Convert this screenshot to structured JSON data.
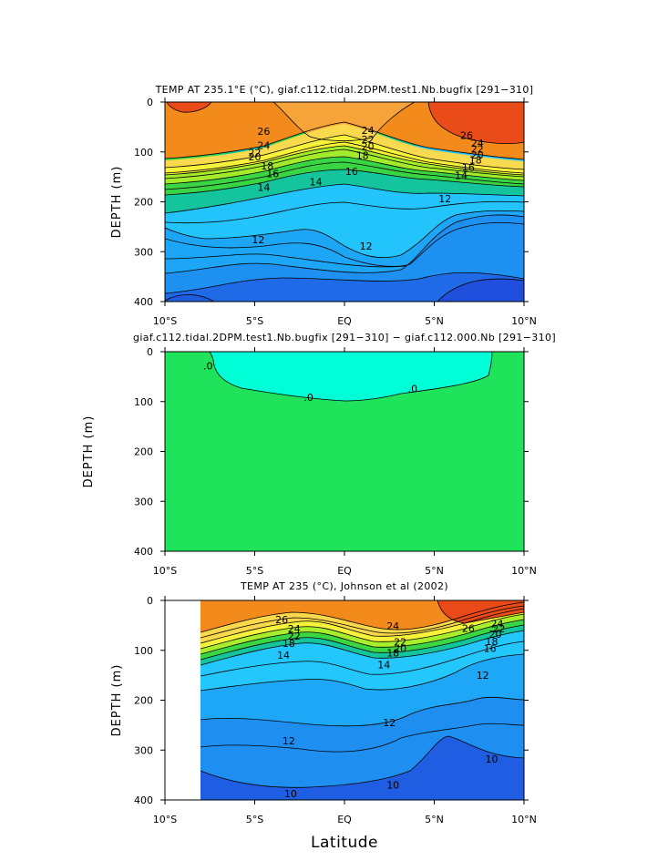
{
  "chart_data": [
    {
      "type": "contour",
      "title": "TEMP AT 235.1°E (°C), giaf.c112.tidal.2DPM.test1.Nb.bugfix [291−310]",
      "ylabel": "DEPTH (m)",
      "xticks": [
        "10°S",
        "5°S",
        "EQ",
        "5°N",
        "10°N"
      ],
      "yticks": [
        "0",
        "100",
        "200",
        "300",
        "400"
      ],
      "xlim": [
        -10,
        10
      ],
      "ylim": [
        0,
        400
      ],
      "contour_labels": [
        {
          "text": "26",
          "x": -4.5,
          "y": 58
        },
        {
          "text": "24",
          "x": -4.5,
          "y": 87
        },
        {
          "text": "22",
          "x": -5.0,
          "y": 101
        },
        {
          "text": "20",
          "x": -5.0,
          "y": 110
        },
        {
          "text": "18",
          "x": -4.3,
          "y": 128
        },
        {
          "text": "16",
          "x": -4.0,
          "y": 143
        },
        {
          "text": "14",
          "x": -4.5,
          "y": 171
        },
        {
          "text": "12",
          "x": -4.8,
          "y": 276
        },
        {
          "text": "24",
          "x": 1.3,
          "y": 57
        },
        {
          "text": "22",
          "x": 1.3,
          "y": 75
        },
        {
          "text": "20",
          "x": 1.3,
          "y": 89
        },
        {
          "text": "18",
          "x": 1.0,
          "y": 107
        },
        {
          "text": "14",
          "x": -1.6,
          "y": 160
        },
        {
          "text": "16",
          "x": 0.4,
          "y": 139
        },
        {
          "text": "12",
          "x": 1.2,
          "y": 289
        },
        {
          "text": "26",
          "x": 6.8,
          "y": 67
        },
        {
          "text": "24",
          "x": 7.4,
          "y": 82
        },
        {
          "text": "22",
          "x": 7.4,
          "y": 94
        },
        {
          "text": "20",
          "x": 7.4,
          "y": 106
        },
        {
          "text": "18",
          "x": 7.3,
          "y": 116
        },
        {
          "text": "16",
          "x": 6.9,
          "y": 131
        },
        {
          "text": "14",
          "x": 6.5,
          "y": 147
        },
        {
          "text": "12",
          "x": 5.6,
          "y": 194
        }
      ]
    },
    {
      "type": "contour",
      "title": "giaf.c112.tidal.2DPM.test1.Nb.bugfix [291−310] − giaf.c112.000.Nb [291−310]",
      "ylabel": "DEPTH (m)",
      "xticks": [
        "10°S",
        "5°S",
        "EQ",
        "5°N",
        "10°N"
      ],
      "yticks": [
        "0",
        "100",
        "200",
        "300",
        "400"
      ],
      "xlim": [
        -10,
        10
      ],
      "ylim": [
        0,
        400
      ],
      "contour_labels": [
        {
          "text": ".0",
          "x": -7.6,
          "y": 28
        },
        {
          "text": ".0",
          "x": -2.0,
          "y": 91
        },
        {
          "text": ".0",
          "x": 3.8,
          "y": 74
        }
      ]
    },
    {
      "type": "contour",
      "title": "TEMP AT 235 (°C), Johnson et al (2002)",
      "ylabel": "DEPTH (m)",
      "xlabel": "Latitude",
      "xticks": [
        "10°S",
        "5°S",
        "EQ",
        "5°N",
        "10°N"
      ],
      "yticks": [
        "0",
        "100",
        "200",
        "300",
        "400"
      ],
      "xlim": [
        -10,
        10
      ],
      "ylim": [
        0,
        400
      ],
      "contour_labels": [
        {
          "text": "26",
          "x": -3.5,
          "y": 38
        },
        {
          "text": "24",
          "x": -2.8,
          "y": 57
        },
        {
          "text": "22",
          "x": -2.8,
          "y": 71
        },
        {
          "text": "18",
          "x": -3.1,
          "y": 86
        },
        {
          "text": "14",
          "x": -3.4,
          "y": 110
        },
        {
          "text": "24",
          "x": 2.7,
          "y": 51
        },
        {
          "text": "22",
          "x": 3.1,
          "y": 83
        },
        {
          "text": "20",
          "x": 3.1,
          "y": 96
        },
        {
          "text": "18",
          "x": 2.7,
          "y": 105
        },
        {
          "text": "14",
          "x": 2.2,
          "y": 129
        },
        {
          "text": "26",
          "x": 6.9,
          "y": 56
        },
        {
          "text": "24",
          "x": 8.5,
          "y": 47
        },
        {
          "text": "22",
          "x": 8.6,
          "y": 57
        },
        {
          "text": "20",
          "x": 8.4,
          "y": 68
        },
        {
          "text": "18",
          "x": 8.2,
          "y": 82
        },
        {
          "text": "16",
          "x": 8.1,
          "y": 96
        },
        {
          "text": "12",
          "x": 7.7,
          "y": 150
        },
        {
          "text": "12",
          "x": -3.1,
          "y": 281
        },
        {
          "text": "12",
          "x": 2.5,
          "y": 245
        },
        {
          "text": "10",
          "x": -3.0,
          "y": 387
        },
        {
          "text": "10",
          "x": 2.7,
          "y": 370
        },
        {
          "text": "10",
          "x": 8.2,
          "y": 318
        }
      ]
    }
  ]
}
